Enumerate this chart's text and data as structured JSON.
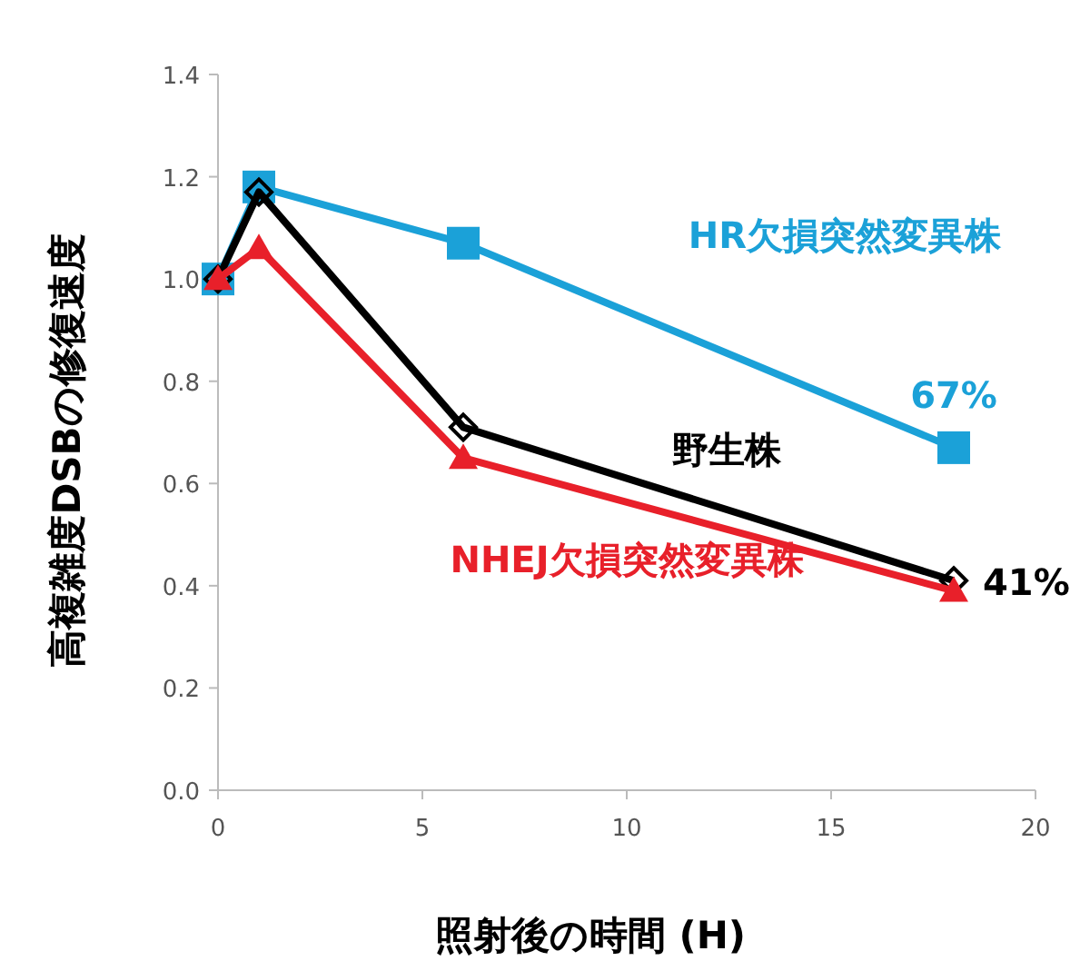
{
  "chart_data": {
    "type": "line",
    "xlabel": "照射後の時間 (H)",
    "ylabel": "高複雑度DSBの修復速度",
    "xlim": [
      0,
      20
    ],
    "xticks": [
      0,
      5,
      10,
      15,
      20
    ],
    "ylim": [
      0,
      1.4
    ],
    "yticks": [
      {
        "value": 0,
        "label": "0.0"
      },
      {
        "value": 0.2,
        "label": "0.2"
      },
      {
        "value": 0.4,
        "label": "0.4"
      },
      {
        "value": 0.6,
        "label": "0.6"
      },
      {
        "value": 0.8,
        "label": "0.8"
      },
      {
        "value": 1.0,
        "label": "1.0"
      },
      {
        "value": 1.2,
        "label": "1.2"
      },
      {
        "value": 1.4,
        "label": "1.4"
      }
    ],
    "grid": false,
    "x": [
      0,
      1,
      6,
      18
    ],
    "series": [
      {
        "name": "HR欠損突然変異株",
        "color": "#1ba1d8",
        "marker": "square",
        "values": [
          1.0,
          1.18,
          1.07,
          0.67
        ]
      },
      {
        "name": "野生株",
        "color": "#000000",
        "marker": "diamond",
        "values": [
          1.0,
          1.17,
          0.71,
          0.41
        ]
      },
      {
        "name": "NHEJ欠損突然変異株",
        "color": "#e8202a",
        "marker": "triangle",
        "values": [
          1.0,
          1.06,
          0.65,
          0.39
        ]
      }
    ],
    "annotations": [
      {
        "text": "67%",
        "x": 18,
        "y": 0.67
      },
      {
        "text": "41%",
        "x": 18,
        "y": 0.41
      }
    ]
  }
}
